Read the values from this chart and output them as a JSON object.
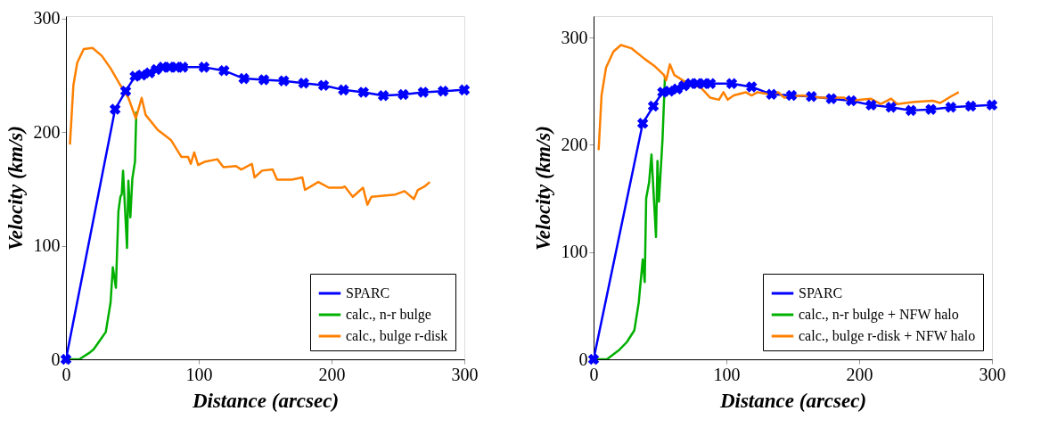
{
  "chart_data": [
    {
      "type": "line",
      "xlabel": "Distance (arcsec)",
      "ylabel": "Velocity (km/s)",
      "xlim": [
        0,
        300
      ],
      "ylim": [
        0,
        302
      ],
      "xticks": [
        0,
        100,
        200,
        300
      ],
      "yticks": [
        0,
        100,
        200,
        300
      ],
      "grid": false,
      "legend": "bottom right",
      "series": [
        {
          "name": "SPARC",
          "color": "#0000ff",
          "marker": "cross",
          "x": [
            0,
            37,
            45,
            52,
            57,
            63,
            68,
            73,
            78,
            83,
            88,
            104,
            119,
            134,
            149,
            164,
            179,
            194,
            209,
            224,
            239,
            254,
            269,
            284,
            300
          ],
          "values": [
            0,
            220,
            236,
            249,
            250,
            252,
            255,
            257,
            257,
            257,
            257,
            257,
            254,
            247,
            246,
            245,
            243,
            241,
            237,
            235,
            232,
            233,
            235,
            236,
            237
          ]
        },
        {
          "name": "calc., n-r bulge",
          "color": "#00b000",
          "marker": "none",
          "x": [
            0,
            10,
            18,
            21,
            27,
            30,
            33.6,
            35.3,
            37.6,
            39.5,
            41,
            42,
            43,
            46,
            47,
            48.5,
            50,
            52,
            53
          ],
          "values": [
            0,
            0,
            6,
            9,
            19,
            24,
            50,
            81,
            63,
            130,
            143,
            145,
            166,
            98,
            157,
            125,
            159,
            174,
            218
          ]
        },
        {
          "name": "calc., bulge r-disk",
          "color": "#ff8000",
          "marker": "none",
          "x": [
            3,
            5.6,
            8.5,
            13.4,
            20,
            27,
            33.6,
            40,
            47,
            52.6,
            57,
            60,
            69,
            79,
            87,
            92,
            94,
            96.6,
            99.5,
            105,
            114,
            118.6,
            128,
            132,
            140,
            142,
            147.7,
            155.6,
            159,
            170,
            178,
            180,
            190,
            198,
            208,
            210,
            216,
            223.7,
            227,
            230,
            248,
            255,
            262,
            265,
            270,
            274
          ],
          "values": [
            189,
            241,
            261,
            273,
            274,
            267,
            256,
            243,
            230,
            212,
            230,
            215,
            202,
            193,
            178,
            178,
            172,
            182,
            171,
            174,
            176,
            169,
            170,
            167,
            172,
            160,
            166,
            167,
            158,
            158,
            160,
            149,
            156,
            151,
            151,
            152,
            143,
            151,
            136,
            143,
            145,
            148,
            141,
            149,
            152,
            156
          ]
        }
      ]
    },
    {
      "type": "line",
      "xlabel": "Distance (arcsec)",
      "ylabel": "Velocity (km/s)",
      "xlim": [
        0,
        300
      ],
      "ylim": [
        0,
        320
      ],
      "xticks": [
        0,
        100,
        200,
        300
      ],
      "yticks": [
        0,
        100,
        200,
        300
      ],
      "grid": false,
      "legend": "bottom right",
      "series": [
        {
          "name": "SPARC",
          "color": "#0000ff",
          "marker": "cross",
          "x": [
            0,
            37,
            45,
            52,
            57,
            63,
            68,
            73,
            78,
            83,
            88,
            104,
            119,
            134,
            149,
            164,
            179,
            194,
            209,
            224,
            239,
            254,
            269,
            284,
            300
          ],
          "values": [
            0,
            220,
            236,
            249,
            250,
            252,
            255,
            257,
            257,
            257,
            257,
            257,
            254,
            247,
            246,
            245,
            243,
            241,
            237,
            235,
            232,
            233,
            235,
            236,
            237
          ]
        },
        {
          "name": "calc., n-r bulge + NFW halo",
          "color": "#00b000",
          "marker": "none",
          "x": [
            0,
            10,
            19.5,
            25,
            30.7,
            34,
            37,
            38.5,
            39.6,
            41.8,
            43.6,
            47,
            48.1,
            49.2,
            51.9,
            53.7
          ],
          "values": [
            0,
            0,
            9,
            16,
            27,
            53,
            93,
            72,
            150,
            165,
            191,
            114,
            185,
            147,
            205,
            262
          ]
        },
        {
          "name": "calc., bulge r-disk + NFW halo",
          "color": "#ff8000",
          "marker": "none",
          "x": [
            3.8,
            6,
            9.4,
            15,
            20.6,
            28.4,
            38.5,
            46.3,
            53,
            54.6,
            57.5,
            60.8,
            69.8,
            81,
            87.7,
            94.4,
            97.8,
            101,
            105.6,
            114.5,
            119,
            123.5,
            132.4,
            139,
            143.6,
            157,
            170.5,
            188.4,
            192.8,
            208.5,
            216.3,
            224,
            228.7,
            242,
            255.5,
            261,
            269,
            275
          ],
          "values": [
            195,
            246,
            272,
            287,
            293,
            290,
            280,
            273,
            265,
            260,
            275,
            265,
            258,
            253,
            244,
            242,
            249,
            242,
            246,
            249,
            246,
            249,
            247,
            249,
            244,
            246,
            244,
            244,
            241,
            243,
            238,
            243,
            238,
            240,
            241,
            239,
            245,
            249
          ]
        }
      ]
    }
  ]
}
